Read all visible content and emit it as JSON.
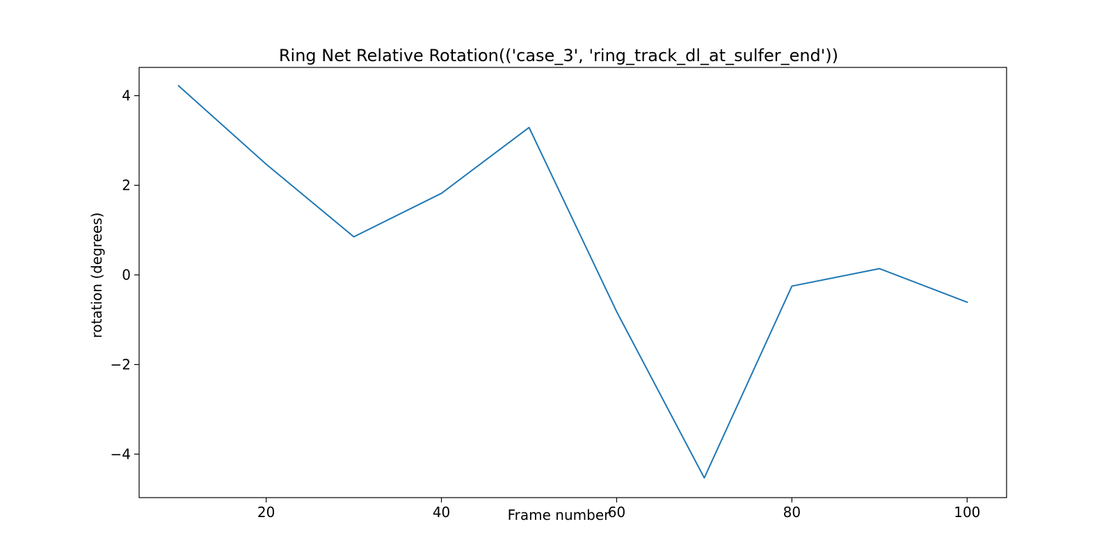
{
  "chart_data": {
    "type": "line",
    "title": "Ring Net Relative Rotation(('case_3', 'ring_track_dl_at_sulfer_end'))",
    "xlabel": "Frame number",
    "ylabel": "rotation (degrees)",
    "xlim": [
      5.5,
      104.5
    ],
    "ylim": [
      -4.97,
      4.63
    ],
    "xticks": [
      20,
      40,
      60,
      80,
      100
    ],
    "yticks": [
      -4,
      -2,
      0,
      2,
      4
    ],
    "xtick_labels": [
      "20",
      "40",
      "60",
      "80",
      "100"
    ],
    "ytick_labels": [
      "−4",
      "−2",
      "0",
      "2",
      "4"
    ],
    "grid": false,
    "legend": "none",
    "series": [
      {
        "color": "#1f77b4",
        "x": [
          10,
          20,
          30,
          40,
          50,
          60,
          70,
          80,
          90,
          100
        ],
        "y": [
          4.22,
          2.47,
          0.85,
          1.82,
          3.29,
          -0.82,
          -4.53,
          -0.25,
          0.14,
          -0.61
        ]
      }
    ]
  }
}
